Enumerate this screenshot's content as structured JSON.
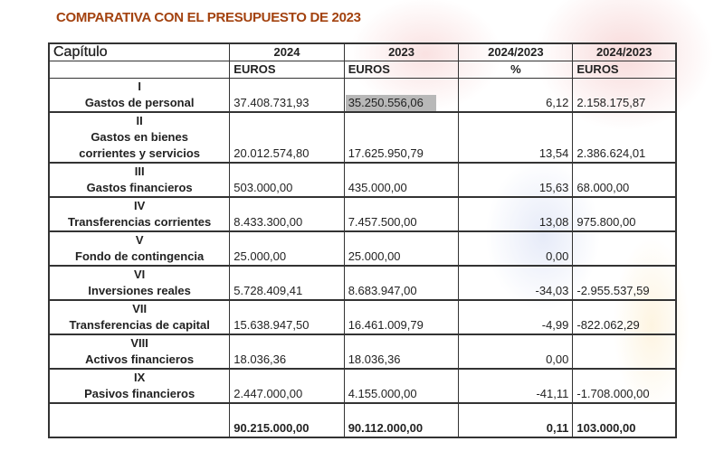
{
  "title": "COMPARATIVA CON EL PRESUPUESTO DE 2023",
  "headers": [
    "Capítulo",
    "2024",
    "2023",
    "2024/2023",
    "2024/2023"
  ],
  "units": [
    "",
    "EUROS",
    "EUROS",
    "%",
    "EUROS"
  ],
  "rows": [
    {
      "num": "I",
      "name": [
        "Gastos de personal"
      ],
      "v2024": "37.408.731,93",
      "v2023": "35.250.556,06",
      "pct": "6,12",
      "diff": "2.158.175,87"
    },
    {
      "num": "II",
      "name": [
        "Gastos en bienes",
        "corrientes y servicios"
      ],
      "v2024": "20.012.574,80",
      "v2023": "17.625.950,79",
      "pct": "13,54",
      "diff": "2.386.624,01"
    },
    {
      "num": "III",
      "name": [
        "Gastos financieros"
      ],
      "v2024": "503.000,00",
      "v2023": "435.000,00",
      "pct": "15,63",
      "diff": "68.000,00"
    },
    {
      "num": "IV",
      "name": [
        "Transferencias corrientes"
      ],
      "v2024": "8.433.300,00",
      "v2023": "7.457.500,00",
      "pct": "13,08",
      "diff": "975.800,00"
    },
    {
      "num": "V",
      "name": [
        "Fondo de contingencia"
      ],
      "v2024": "25.000,00",
      "v2023": "25.000,00",
      "pct": "0,00",
      "diff": ""
    },
    {
      "num": "VI",
      "name": [
        "Inversiones reales"
      ],
      "v2024": "5.728.409,41",
      "v2023": "8.683.947,00",
      "pct": "-34,03",
      "diff": "-2.955.537,59"
    },
    {
      "num": "VII",
      "name": [
        "Transferencias de capital"
      ],
      "v2024": "15.638.947,50",
      "v2023": "16.461.009,79",
      "pct": "-4,99",
      "diff": "-822.062,29"
    },
    {
      "num": "VIII",
      "name": [
        "Activos financieros"
      ],
      "v2024": "18.036,36",
      "v2023": "18.036,36",
      "pct": "0,00",
      "diff": ""
    },
    {
      "num": "IX",
      "name": [
        "Pasivos financieros"
      ],
      "v2024": "2.447.000,00",
      "v2023": "4.155.000,00",
      "pct": "-41,11",
      "diff": "-1.708.000,00"
    }
  ],
  "total": {
    "v2024": "90.215.000,00",
    "v2023": "90.112.000,00",
    "pct": "0,11",
    "diff": "103.000,00"
  },
  "colors": {
    "title": "#a3420f",
    "highlight": "#b8b8b8"
  }
}
